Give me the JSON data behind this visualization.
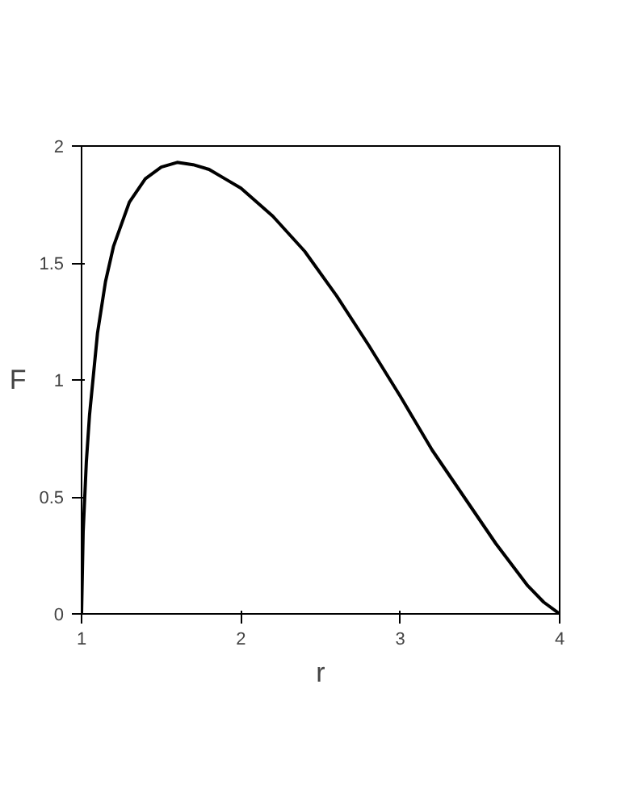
{
  "chart_data": {
    "type": "line",
    "xlabel": "r",
    "ylabel": "F",
    "xlim": [
      1,
      4
    ],
    "ylim": [
      0,
      2
    ],
    "xticks": [
      1,
      2,
      3,
      4
    ],
    "yticks": [
      0,
      0.5,
      1,
      1.5,
      2
    ],
    "grid": false,
    "series": [
      {
        "color": "#000000",
        "x": [
          1,
          1.01,
          1.03,
          1.05,
          1.1,
          1.15,
          1.2,
          1.3,
          1.4,
          1.5,
          1.6,
          1.7,
          1.8,
          1.9,
          2,
          2.2,
          2.4,
          2.6,
          2.8,
          3,
          3.2,
          3.4,
          3.6,
          3.8,
          3.9,
          4
        ],
        "values": [
          0,
          0.35,
          0.65,
          0.85,
          1.2,
          1.42,
          1.57,
          1.76,
          1.86,
          1.91,
          1.93,
          1.92,
          1.9,
          1.86,
          1.82,
          1.7,
          1.55,
          1.36,
          1.15,
          0.93,
          0.7,
          0.5,
          0.3,
          0.12,
          0.05,
          0
        ]
      }
    ]
  }
}
